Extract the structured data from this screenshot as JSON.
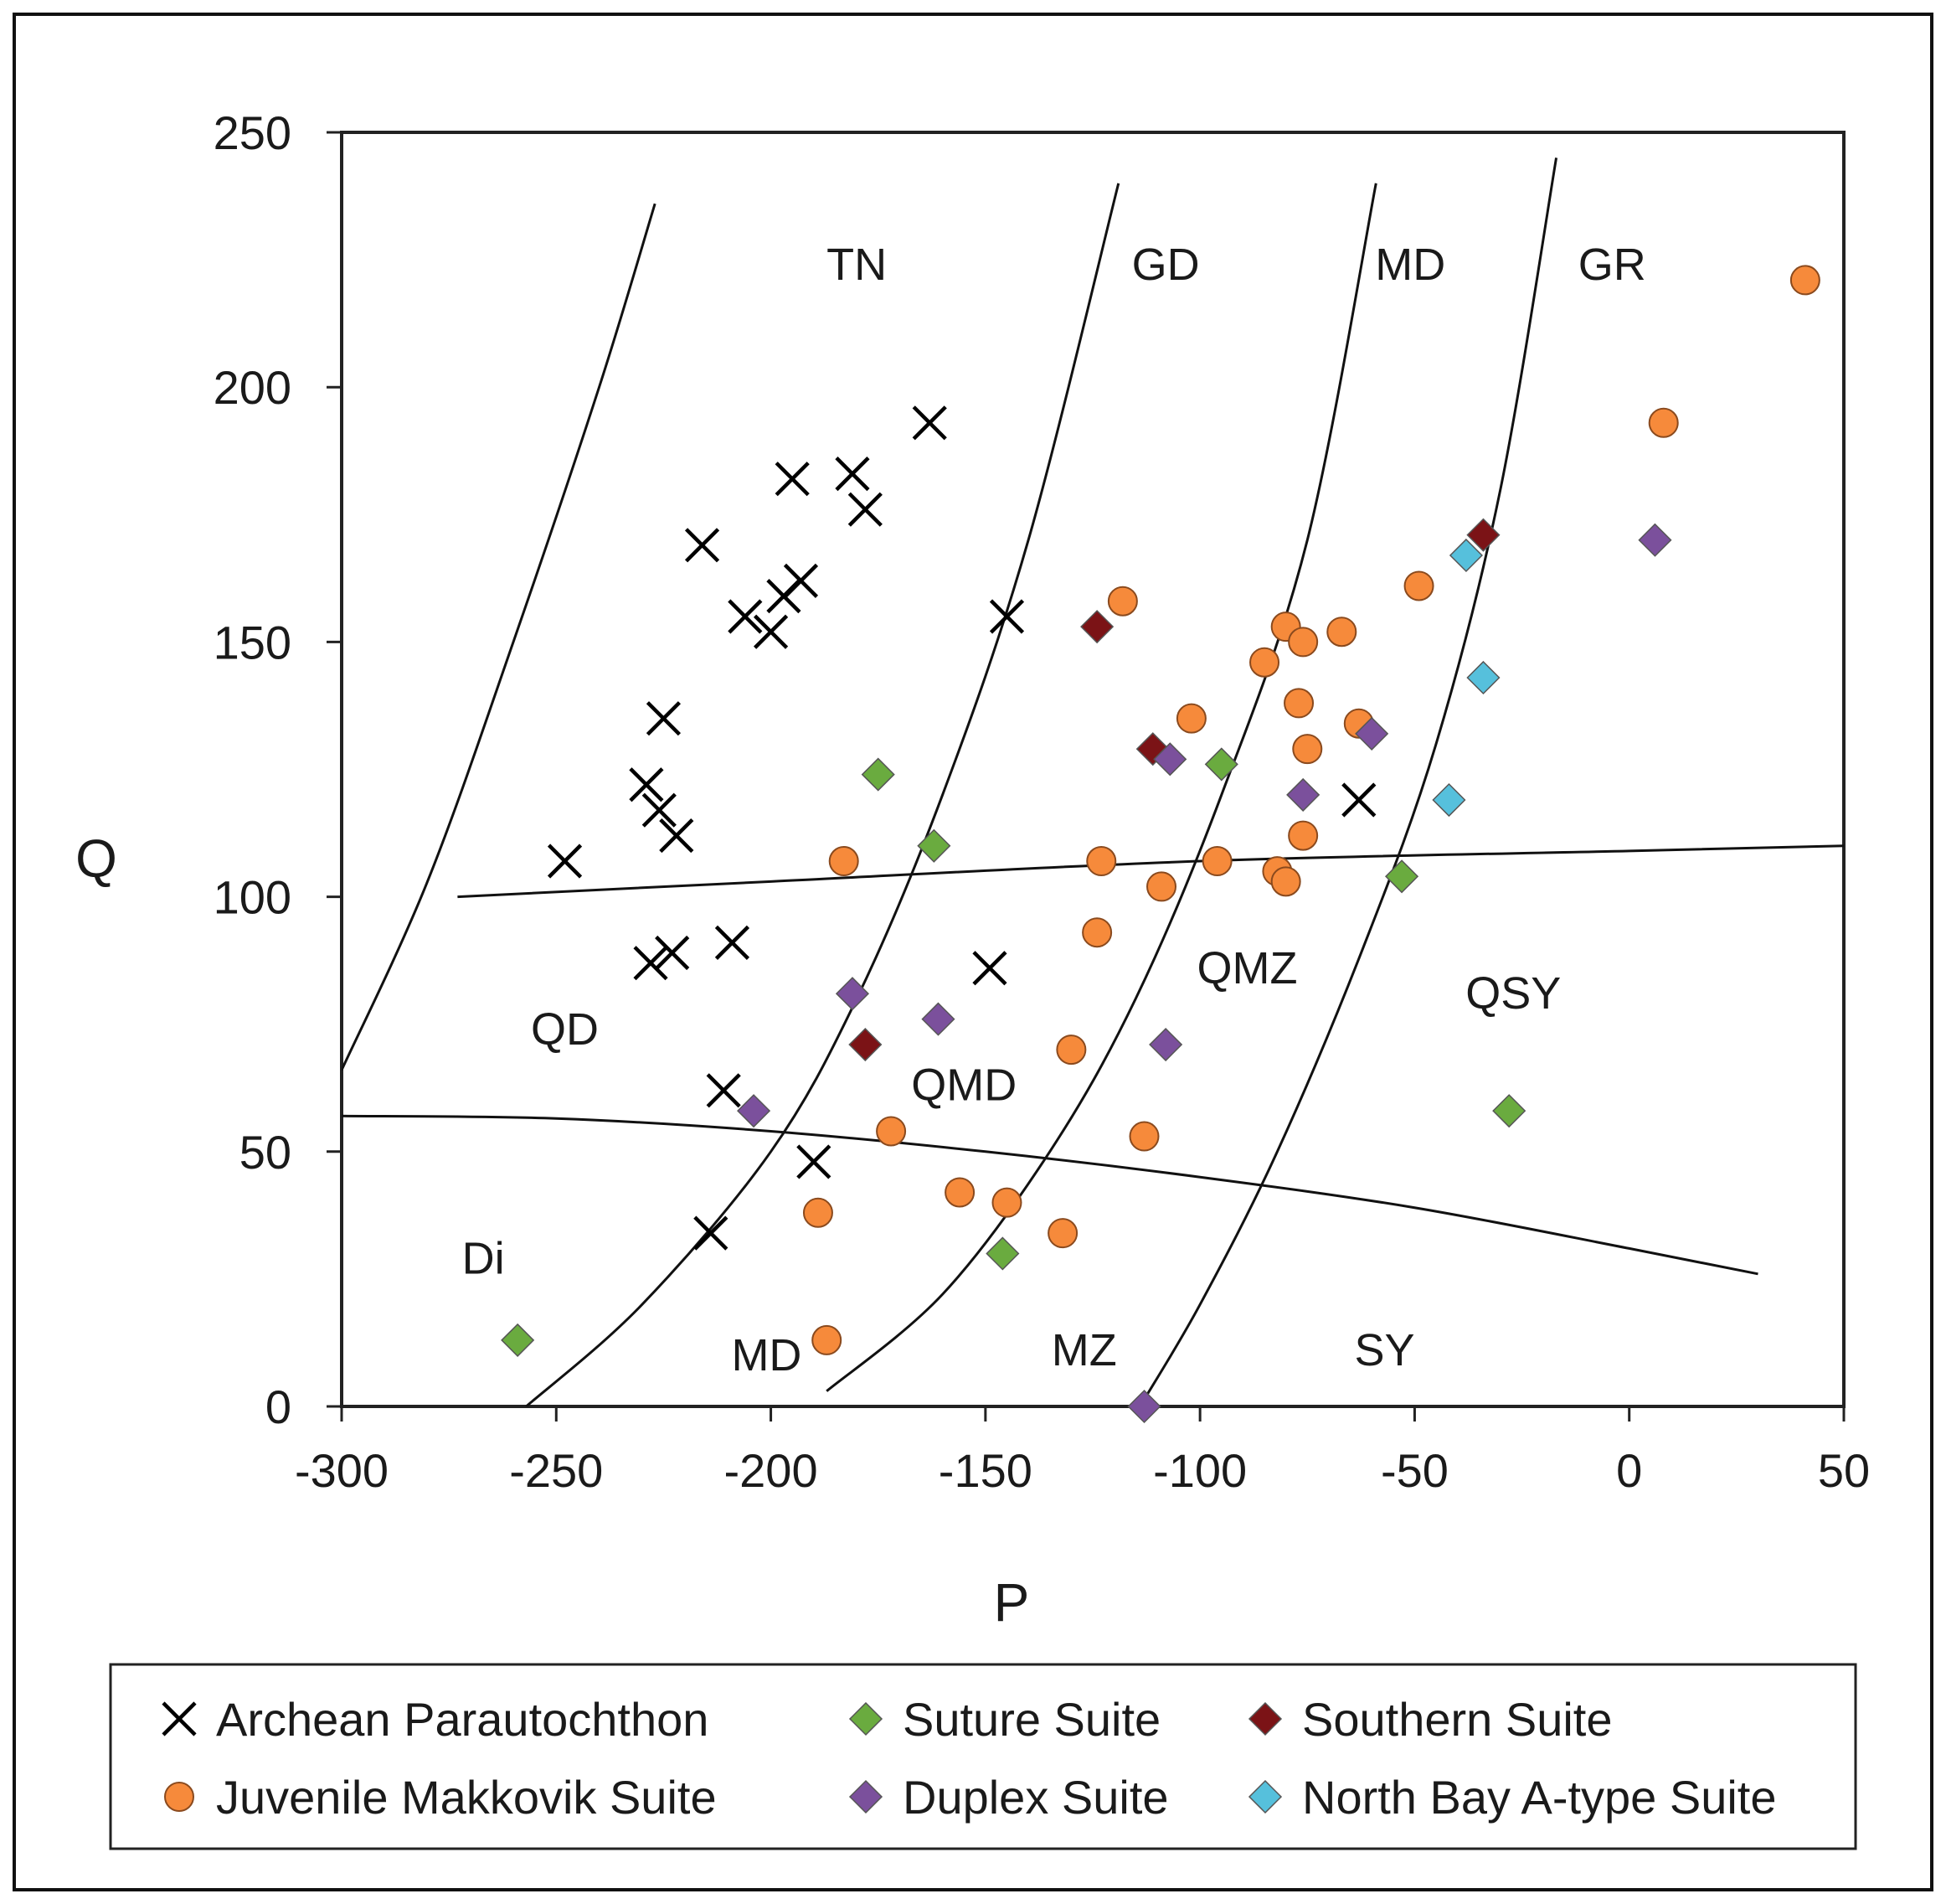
{
  "chart_data": {
    "type": "scatter",
    "xlabel": "P",
    "ylabel": "Q",
    "xlim": [
      -300,
      50
    ],
    "ylim": [
      0,
      250
    ],
    "xticks": [
      -300,
      -250,
      -200,
      -150,
      -100,
      -50,
      0,
      50
    ],
    "yticks": [
      0,
      50,
      100,
      150,
      200,
      250
    ],
    "grid": false,
    "legend_position": "bottom",
    "regions": [
      {
        "label": "TN",
        "p": -180,
        "q": 224
      },
      {
        "label": "GD",
        "p": -108,
        "q": 224
      },
      {
        "label": "MD",
        "p": -51,
        "q": 224
      },
      {
        "label": "GR",
        "p": -4,
        "q": 224
      },
      {
        "label": "QD",
        "p": -248,
        "q": 74
      },
      {
        "label": "QMD",
        "p": -155,
        "q": 63
      },
      {
        "label": "QMZ",
        "p": -89,
        "q": 86
      },
      {
        "label": "QSY",
        "p": -27,
        "q": 81
      },
      {
        "label": "Di",
        "p": -267,
        "q": 29
      },
      {
        "label": "MD",
        "p": -201,
        "q": 10
      },
      {
        "label": "MZ",
        "p": -127,
        "q": 11
      },
      {
        "label": "SY",
        "p": -57,
        "q": 11
      }
    ],
    "boundaries": [
      {
        "name": "tn-left-boundary",
        "points": [
          [
            -300,
            66
          ],
          [
            -280,
            103
          ],
          [
            -260,
            150
          ],
          [
            -240,
            200
          ],
          [
            -227,
            236
          ]
        ]
      },
      {
        "name": "tn-gd-boundary",
        "points": [
          [
            -257,
            0
          ],
          [
            -230,
            20
          ],
          [
            -200,
            50
          ],
          [
            -180,
            80
          ],
          [
            -160,
            120
          ],
          [
            -140,
            170
          ],
          [
            -119,
            240
          ]
        ]
      },
      {
        "name": "gd-md-boundary",
        "points": [
          [
            -187,
            3
          ],
          [
            -160,
            22
          ],
          [
            -135,
            50
          ],
          [
            -115,
            80
          ],
          [
            -95,
            120
          ],
          [
            -75,
            170
          ],
          [
            -59,
            240
          ]
        ]
      },
      {
        "name": "md-gr-boundary",
        "points": [
          [
            -114,
            0
          ],
          [
            -100,
            20
          ],
          [
            -82,
            50
          ],
          [
            -62,
            90
          ],
          [
            -45,
            130
          ],
          [
            -30,
            180
          ],
          [
            -17,
            245
          ]
        ]
      },
      {
        "name": "upper-horizontal-boundary",
        "points": [
          [
            -273,
            100
          ],
          [
            -200,
            103
          ],
          [
            -100,
            107
          ],
          [
            0,
            109
          ],
          [
            50,
            110
          ]
        ]
      },
      {
        "name": "lower-horizontal-boundary",
        "points": [
          [
            -300,
            57
          ],
          [
            -250,
            56.5
          ],
          [
            -200,
            54
          ],
          [
            -150,
            50
          ],
          [
            -100,
            45
          ],
          [
            -50,
            39
          ],
          [
            0,
            31
          ],
          [
            30,
            26
          ]
        ]
      }
    ],
    "series": [
      {
        "name": "Archean Parautochthon",
        "marker": "x",
        "color": "#000000",
        "points": [
          [
            -163,
            193
          ],
          [
            -195,
            182
          ],
          [
            -181,
            183
          ],
          [
            -178,
            176
          ],
          [
            -216,
            169
          ],
          [
            -197,
            159
          ],
          [
            -193,
            162
          ],
          [
            -206,
            155
          ],
          [
            -200,
            152
          ],
          [
            -145,
            155
          ],
          [
            -225,
            135
          ],
          [
            -229,
            122
          ],
          [
            -226,
            117
          ],
          [
            -222,
            112
          ],
          [
            -248,
            107
          ],
          [
            -209,
            91
          ],
          [
            -223,
            89
          ],
          [
            -228,
            87
          ],
          [
            -149,
            86
          ],
          [
            -63,
            119
          ],
          [
            -211,
            62
          ],
          [
            -190,
            48
          ],
          [
            -214,
            34
          ]
        ]
      },
      {
        "name": "Suture Suite",
        "marker": "diamond",
        "color": "#6aab3f",
        "points": [
          [
            -175,
            124
          ],
          [
            -162,
            110
          ],
          [
            -95,
            126
          ],
          [
            -53,
            104
          ],
          [
            -28,
            58
          ],
          [
            -146,
            30
          ],
          [
            -259,
            13
          ]
        ]
      },
      {
        "name": "Southern Suite",
        "marker": "diamond",
        "color": "#7b1316",
        "points": [
          [
            -124,
            153
          ],
          [
            -111,
            129
          ],
          [
            -34,
            171
          ],
          [
            -178,
            71
          ]
        ]
      },
      {
        "name": "Juvenile Makkovik Suite",
        "marker": "circle",
        "color": "#f68a3b",
        "points": [
          [
            41,
            221
          ],
          [
            8,
            193
          ],
          [
            -49,
            161
          ],
          [
            -118,
            158
          ],
          [
            -80,
            153
          ],
          [
            -76,
            150
          ],
          [
            -67,
            152
          ],
          [
            -85,
            146
          ],
          [
            -102,
            135
          ],
          [
            -77,
            138
          ],
          [
            -63,
            134
          ],
          [
            -75,
            129
          ],
          [
            -183,
            107
          ],
          [
            -123,
            107
          ],
          [
            -96,
            107
          ],
          [
            -109,
            102
          ],
          [
            -82,
            105
          ],
          [
            -80,
            103
          ],
          [
            -76,
            112
          ],
          [
            -124,
            93
          ],
          [
            -130,
            70
          ],
          [
            -172,
            54
          ],
          [
            -113,
            53
          ],
          [
            -189,
            38
          ],
          [
            -156,
            42
          ],
          [
            -145,
            40
          ],
          [
            -132,
            34
          ],
          [
            -187,
            13
          ]
        ]
      },
      {
        "name": "Duplex Suite",
        "marker": "diamond",
        "color": "#7b509c",
        "points": [
          [
            6,
            170
          ],
          [
            -107,
            127
          ],
          [
            -76,
            120
          ],
          [
            -60,
            132
          ],
          [
            -181,
            81
          ],
          [
            -161,
            76
          ],
          [
            -108,
            71
          ],
          [
            -204,
            58
          ],
          [
            -113,
            0
          ]
        ]
      },
      {
        "name": "North Bay A-type Suite",
        "marker": "diamond",
        "color": "#56c0dc",
        "points": [
          [
            -38,
            167
          ],
          [
            -34,
            143
          ],
          [
            -42,
            119
          ]
        ]
      }
    ]
  },
  "legend": [
    {
      "name": "Archean Parautochthon",
      "marker": "x",
      "color": "#000000"
    },
    {
      "name": "Suture Suite",
      "marker": "diamond",
      "color": "#6aab3f"
    },
    {
      "name": "Southern Suite",
      "marker": "diamond",
      "color": "#7b1316"
    },
    {
      "name": "Juvenile Makkovik Suite",
      "marker": "circle",
      "color": "#f68a3b"
    },
    {
      "name": "Duplex Suite",
      "marker": "diamond",
      "color": "#7b509c"
    },
    {
      "name": "North Bay A-type Suite",
      "marker": "diamond",
      "color": "#56c0dc"
    }
  ]
}
